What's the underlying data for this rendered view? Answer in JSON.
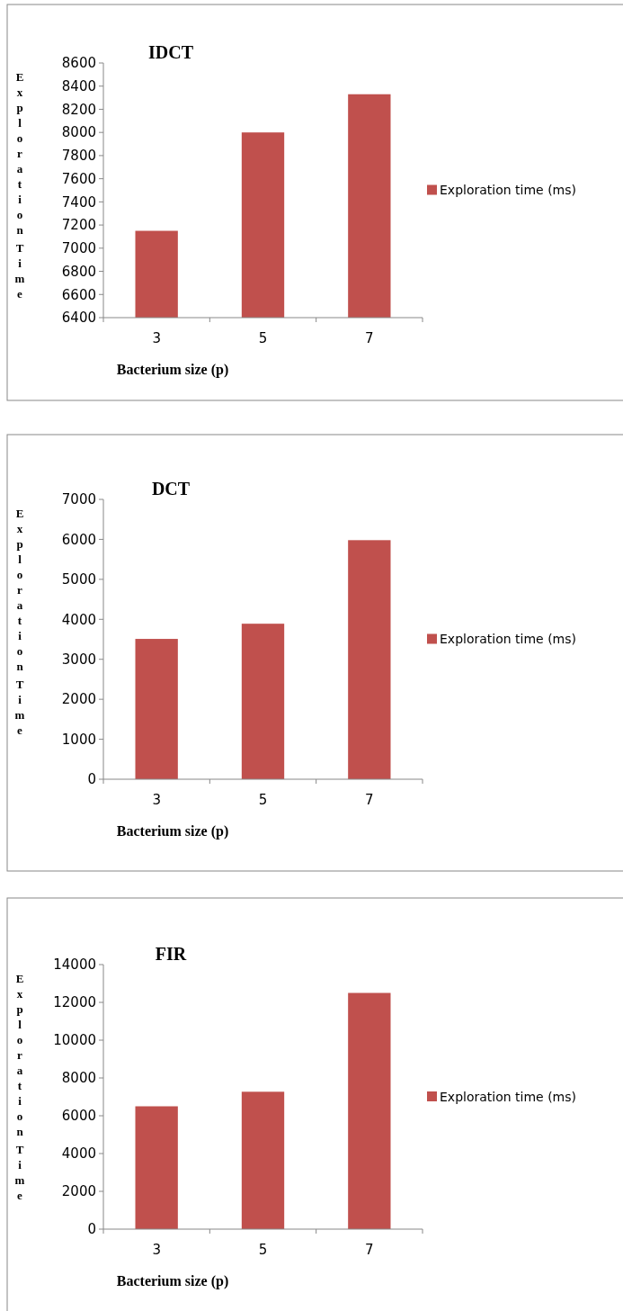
{
  "chart_data": [
    {
      "type": "bar",
      "title": "IDCT",
      "xlabel": "Bacterium size (p)",
      "ylabel": "Exploration Time",
      "categories": [
        "3",
        "5",
        "7"
      ],
      "series": [
        {
          "name": "Exploration time (ms)",
          "color": "#c0504d",
          "values": [
            7150,
            8000,
            8330
          ]
        }
      ],
      "ylim": [
        6400,
        8600
      ],
      "yticks": [
        6400,
        6600,
        6800,
        7000,
        7200,
        7400,
        7600,
        7800,
        8000,
        8200,
        8400,
        8600
      ],
      "legend": "right",
      "grid": false
    },
    {
      "type": "bar",
      "title": "DCT",
      "xlabel": "Bacterium size (p)",
      "ylabel": "Exploration Time",
      "categories": [
        "3",
        "5",
        "7"
      ],
      "series": [
        {
          "name": "Exploration time (ms)",
          "color": "#c0504d",
          "values": [
            3510,
            3890,
            5980
          ]
        }
      ],
      "ylim": [
        0,
        7000
      ],
      "yticks": [
        0,
        1000,
        2000,
        3000,
        4000,
        5000,
        6000,
        7000
      ],
      "legend": "right",
      "grid": false
    },
    {
      "type": "bar",
      "title": "FIR",
      "xlabel": "Bacterium size (p)",
      "ylabel": "Exploration Time",
      "categories": [
        "3",
        "5",
        "7"
      ],
      "series": [
        {
          "name": "Exploration time (ms)",
          "color": "#c0504d",
          "values": [
            6500,
            7270,
            12500
          ]
        }
      ],
      "ylim": [
        0,
        14000
      ],
      "yticks": [
        0,
        2000,
        4000,
        6000,
        8000,
        10000,
        12000,
        14000
      ],
      "legend": "right",
      "grid": false
    }
  ]
}
